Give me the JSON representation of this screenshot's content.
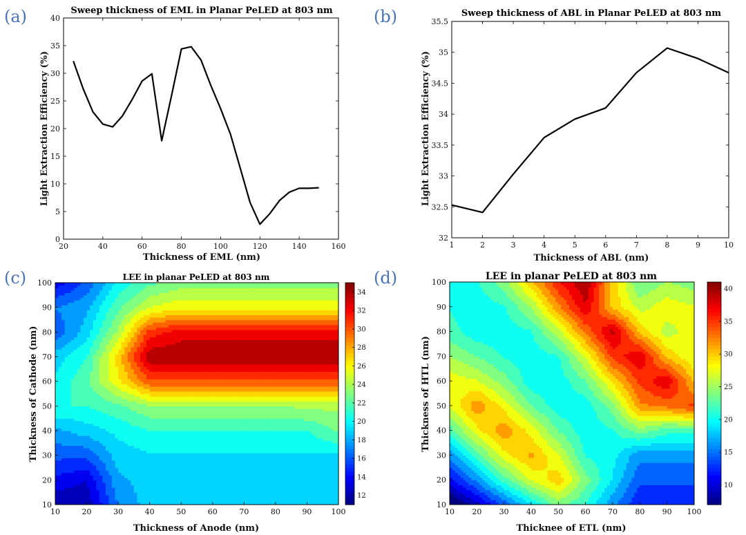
{
  "panels": [
    {
      "label": "(a)",
      "title": "Sweep thickness of EML in Planar PeLED at 803 nm",
      "xlabel": "Thickness of EML (nm)",
      "ylabel": "Light Extraction Efficiency (%)"
    },
    {
      "label": "(b)",
      "title": "Sweep thickness of ABL in Planar PeLED at 803 nm",
      "xlabel": "Thickness of ABL (nm)",
      "ylabel": "Light Extraction Efficiency (%)"
    },
    {
      "label": "(c)",
      "title": "LEE in planar PeLED at 803 nm",
      "xlabel": "Thickness of Anode (nm)",
      "ylabel": "Thickness of Cathode (nm)"
    },
    {
      "label": "(d)",
      "title": "LEE in planar PeLED at 803 nm",
      "xlabel": "Thicknee of ETL (nm)",
      "ylabel": "Thickness of HTL (nm)"
    }
  ],
  "chart_data": [
    {
      "type": "line",
      "title": "Sweep thickness of EML in Planar PeLED at 803 nm",
      "xlabel": "Thickness of EML (nm)",
      "ylabel": "Light Extraction Efficiency (%)",
      "xlim": [
        20,
        160
      ],
      "ylim": [
        0,
        40
      ],
      "xticks": [
        20,
        40,
        60,
        80,
        100,
        120,
        140,
        160
      ],
      "yticks": [
        0,
        5,
        10,
        15,
        20,
        25,
        30,
        35,
        40
      ],
      "x": [
        25,
        30,
        35,
        40,
        45,
        50,
        55,
        60,
        65,
        70,
        75,
        80,
        85,
        90,
        95,
        100,
        105,
        110,
        115,
        120,
        125,
        130,
        135,
        140,
        145,
        150
      ],
      "y": [
        32.2,
        27.2,
        23.0,
        20.8,
        20.3,
        22.3,
        25.3,
        28.6,
        29.9,
        17.8,
        26.0,
        34.4,
        34.8,
        32.4,
        27.8,
        23.6,
        19.0,
        12.8,
        6.6,
        2.7,
        4.6,
        7.0,
        8.5,
        9.2,
        9.2,
        9.3
      ],
      "color": "#000000"
    },
    {
      "type": "line",
      "title": "Sweep thickness of ABL in Planar PeLED at 803 nm",
      "xlabel": "Thickness of ABL (nm)",
      "ylabel": "Light Extraction Efficiency (%)",
      "xlim": [
        1,
        10
      ],
      "ylim": [
        32,
        35.5
      ],
      "xticks": [
        1,
        2,
        3,
        4,
        5,
        6,
        7,
        8,
        9,
        10
      ],
      "yticks": [
        32,
        32.5,
        33,
        33.5,
        34,
        34.5,
        35,
        35.5
      ],
      "x": [
        1,
        2,
        3,
        4,
        5,
        6,
        7,
        8,
        9,
        10
      ],
      "y": [
        32.53,
        32.41,
        33.03,
        33.62,
        33.92,
        34.1,
        34.67,
        35.07,
        34.9,
        34.67
      ],
      "color": "#000000"
    },
    {
      "type": "heatmap",
      "title": "LEE in planar PeLED at 803 nm",
      "xlabel": "Thickness of Anode (nm)",
      "ylabel": "Thickness of Cathode (nm)",
      "xlim": [
        10,
        100
      ],
      "ylim": [
        10,
        100
      ],
      "x": [
        10,
        20,
        30,
        40,
        50,
        60,
        70,
        80,
        90,
        100
      ],
      "y": [
        10,
        20,
        30,
        40,
        50,
        60,
        70,
        80,
        90,
        100
      ],
      "z": [
        [
          11.5,
          12,
          17,
          19,
          19,
          19,
          19,
          19,
          19,
          19
        ],
        [
          14,
          13,
          18,
          19,
          19.5,
          19.5,
          19.5,
          19.5,
          19.5,
          19.5
        ],
        [
          16,
          16,
          19,
          19.5,
          19.5,
          19.5,
          19.5,
          19.5,
          19.5,
          19.5
        ],
        [
          18,
          19,
          20,
          21,
          21,
          21,
          21,
          21,
          21,
          22.5
        ],
        [
          21,
          21,
          22,
          23.5,
          23.5,
          23.5,
          23.5,
          23.5,
          24,
          24
        ],
        [
          20,
          22,
          26,
          30,
          30,
          30,
          30,
          30,
          30,
          30
        ],
        [
          19,
          21,
          27,
          34,
          34,
          34,
          34,
          34,
          34,
          34
        ],
        [
          16,
          19,
          24,
          31,
          32.5,
          32.5,
          32.5,
          32.5,
          32.5,
          32.5
        ],
        [
          17,
          18,
          22,
          25,
          26,
          26,
          26,
          26,
          26,
          26
        ],
        [
          13.5,
          16,
          20,
          22,
          23,
          23,
          23,
          23,
          23,
          23
        ]
      ],
      "colorbar": {
        "min": 11,
        "max": 35,
        "ticks": [
          12,
          14,
          16,
          18,
          20,
          22,
          24,
          26,
          28,
          30,
          32,
          34
        ]
      },
      "colormap": "jet"
    },
    {
      "type": "heatmap",
      "title": "LEE in planar PeLED at 803 nm",
      "xlabel": "Thicknee of ETL (nm)",
      "ylabel": "Thickness of HTL (nm)",
      "xlim": [
        10,
        100
      ],
      "ylim": [
        10,
        100
      ],
      "x": [
        10,
        20,
        30,
        40,
        50,
        60,
        70,
        80,
        90,
        100
      ],
      "y": [
        10,
        20,
        30,
        40,
        50,
        60,
        70,
        80,
        90,
        100
      ],
      "z": [
        [
          5,
          9,
          14,
          19,
          24,
          21,
          16,
          12,
          12,
          12
        ],
        [
          11,
          16,
          22,
          27,
          30,
          24,
          19,
          14,
          14,
          14
        ],
        [
          16,
          22,
          28,
          31,
          27,
          21,
          20,
          16,
          16,
          16
        ],
        [
          22,
          28,
          32,
          28,
          23,
          20,
          21,
          24,
          22,
          22
        ],
        [
          27,
          32,
          28,
          23,
          20,
          20,
          24,
          32,
          33,
          35
        ],
        [
          28,
          27,
          24,
          20,
          20,
          23,
          29,
          35,
          38,
          30
        ],
        [
          25,
          23,
          21,
          20,
          21,
          27,
          35,
          38,
          30,
          27
        ],
        [
          22,
          20,
          20,
          21,
          26,
          33,
          39,
          30,
          26,
          28
        ],
        [
          21,
          20,
          21,
          25,
          32,
          38,
          30,
          26,
          28,
          27
        ],
        [
          20,
          21,
          24,
          30,
          36,
          40,
          30,
          23,
          25,
          24
        ]
      ],
      "colorbar": {
        "min": 7,
        "max": 41,
        "ticks": [
          10,
          15,
          20,
          25,
          30,
          35,
          40
        ]
      },
      "colormap": "jet"
    }
  ]
}
